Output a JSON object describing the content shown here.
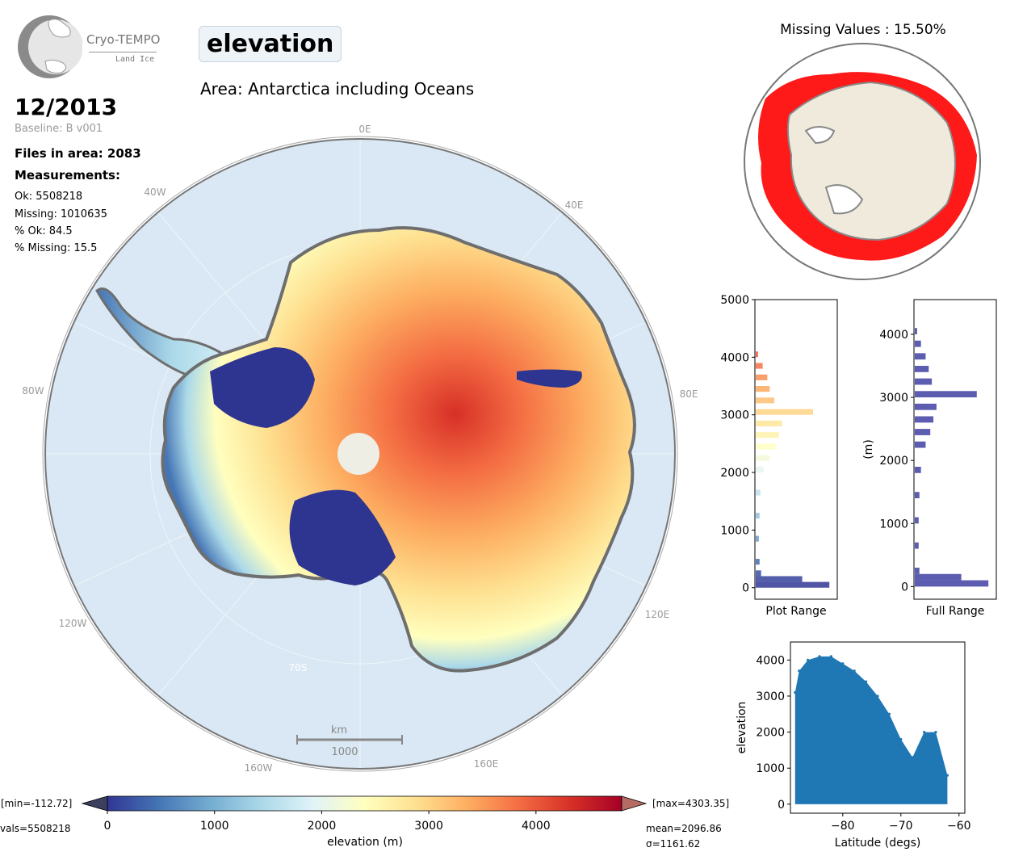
{
  "logo": {
    "title": "Cryo-TEMPO",
    "subtitle": "Land Ice"
  },
  "header": {
    "variable": "elevation",
    "area": "Area: Antarctica including Oceans",
    "date": "12/2013",
    "baseline": "Baseline: B v001"
  },
  "stats": {
    "files": "Files in area: 2083",
    "measurements_heading": "Measurements:",
    "ok": "Ok: 5508218",
    "missing": "Missing: 1010635",
    "pct_ok": "% Ok: 84.5",
    "pct_missing": "% Missing: 15.5"
  },
  "map": {
    "longitude_labels": [
      "0E",
      "40W",
      "40E",
      "80W",
      "80E",
      "120W",
      "120E",
      "160W",
      "160E"
    ],
    "latitude_label": "70S",
    "scale_unit": "km",
    "scale_value": "1000"
  },
  "missing_map": {
    "title": "Missing Values : 15.50%"
  },
  "colorbar": {
    "label": "elevation (m)",
    "ticks": [
      "0",
      "1000",
      "2000",
      "3000",
      "4000"
    ],
    "min_text": "[min=-112.72]",
    "max_text": "[max=4303.35]",
    "nvals_text": "vals=5508218",
    "mean_text": "mean=2096.86",
    "sigma_text": "σ=1161.62",
    "colors": [
      "#313695",
      "#4575b4",
      "#74add1",
      "#abd9e9",
      "#e0f3f8",
      "#ffffbf",
      "#fee090",
      "#fdae61",
      "#f46d43",
      "#d73027",
      "#a50026"
    ]
  },
  "chart_data": [
    {
      "type": "bar",
      "orientation": "horizontal",
      "xlabel": "Plot Range",
      "ylabel": "",
      "ylim": [
        -200,
        5000
      ],
      "ytick_labels": [
        "0",
        "1000",
        "2000",
        "3000",
        "4000",
        "5000"
      ],
      "bins": [
        {
          "y": 0,
          "count": 0.95
        },
        {
          "y": 100,
          "count": 0.6
        },
        {
          "y": 200,
          "count": 0.07
        },
        {
          "y": 400,
          "count": 0.05
        },
        {
          "y": 800,
          "count": 0.04
        },
        {
          "y": 1200,
          "count": 0.05
        },
        {
          "y": 1600,
          "count": 0.06
        },
        {
          "y": 2000,
          "count": 0.1
        },
        {
          "y": 2200,
          "count": 0.18
        },
        {
          "y": 2400,
          "count": 0.26
        },
        {
          "y": 2600,
          "count": 0.3
        },
        {
          "y": 2800,
          "count": 0.34
        },
        {
          "y": 3000,
          "count": 0.74
        },
        {
          "y": 3200,
          "count": 0.24
        },
        {
          "y": 3400,
          "count": 0.18
        },
        {
          "y": 3600,
          "count": 0.15
        },
        {
          "y": 3800,
          "count": 0.09
        },
        {
          "y": 4000,
          "count": 0.03
        }
      ]
    },
    {
      "type": "bar",
      "orientation": "horizontal",
      "xlabel": "Full Range",
      "ylabel": "(m)",
      "ylim": [
        -200,
        4550
      ],
      "ytick_labels": [
        "0",
        "1000",
        "2000",
        "3000",
        "4000"
      ],
      "color": "#3f3fa3",
      "bins": [
        {
          "y": 0,
          "count": 0.95
        },
        {
          "y": 100,
          "count": 0.6
        },
        {
          "y": 200,
          "count": 0.06
        },
        {
          "y": 600,
          "count": 0.05
        },
        {
          "y": 1000,
          "count": 0.05
        },
        {
          "y": 1400,
          "count": 0.06
        },
        {
          "y": 1800,
          "count": 0.08
        },
        {
          "y": 2200,
          "count": 0.14
        },
        {
          "y": 2400,
          "count": 0.2
        },
        {
          "y": 2600,
          "count": 0.24
        },
        {
          "y": 2800,
          "count": 0.28
        },
        {
          "y": 3000,
          "count": 0.8
        },
        {
          "y": 3200,
          "count": 0.22
        },
        {
          "y": 3400,
          "count": 0.18
        },
        {
          "y": 3600,
          "count": 0.14
        },
        {
          "y": 3800,
          "count": 0.08
        },
        {
          "y": 4000,
          "count": 0.03
        }
      ]
    },
    {
      "type": "scatter",
      "xlabel": "Latitude (degs)",
      "ylabel": "elevation",
      "xlim": [
        -89,
        -59
      ],
      "ylim": [
        -250,
        4500
      ],
      "xtick_labels": [
        "−80",
        "−70",
        "−60"
      ],
      "ytick_labels": [
        "0",
        "1000",
        "2000",
        "3000",
        "4000"
      ],
      "color": "#1f77b4",
      "envelope": [
        {
          "x": -88.2,
          "y": 3100
        },
        {
          "x": -87.5,
          "y": 3700
        },
        {
          "x": -86,
          "y": 4000
        },
        {
          "x": -84,
          "y": 4100
        },
        {
          "x": -82,
          "y": 4100
        },
        {
          "x": -80,
          "y": 3900
        },
        {
          "x": -78,
          "y": 3700
        },
        {
          "x": -76,
          "y": 3400
        },
        {
          "x": -74,
          "y": 3000
        },
        {
          "x": -72,
          "y": 2500
        },
        {
          "x": -70,
          "y": 1800
        },
        {
          "x": -68,
          "y": 1300
        },
        {
          "x": -66,
          "y": 2000
        },
        {
          "x": -64,
          "y": 2000
        },
        {
          "x": -62,
          "y": 800
        }
      ]
    }
  ]
}
